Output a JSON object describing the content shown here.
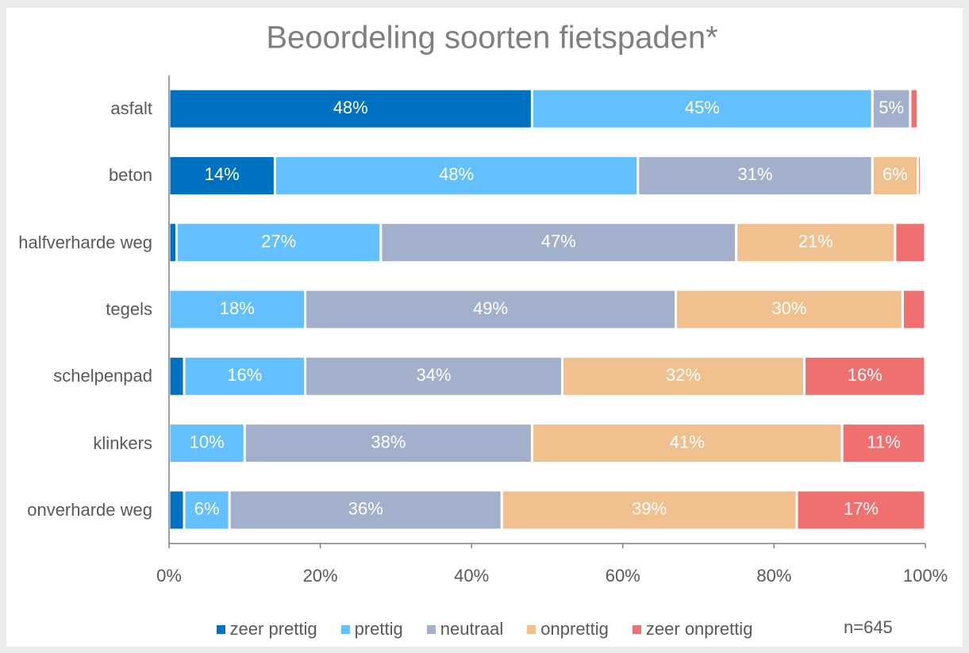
{
  "chart_data": {
    "type": "stacked_barh",
    "title": "Beoordeling soorten fietspaden*",
    "annotation": "n=645",
    "categories": [
      "asfalt",
      "beton",
      "halfverharde weg",
      "tegels",
      "schelpenpad",
      "klinkers",
      "onverharde weg"
    ],
    "series": [
      {
        "name": "zeer prettig",
        "color": "#0070c0",
        "values": [
          48,
          14,
          1,
          0,
          2,
          0,
          2
        ],
        "value_labels": [
          "48%",
          "14%",
          null,
          null,
          null,
          null,
          null
        ]
      },
      {
        "name": "prettig",
        "color": "#63bffe",
        "values": [
          45,
          48,
          27,
          18,
          16,
          10,
          6
        ],
        "value_labels": [
          "45%",
          "48%",
          "27%",
          "18%",
          "16%",
          "10%",
          "6%"
        ]
      },
      {
        "name": "neutraal",
        "color": "#a2b0cb",
        "values": [
          5,
          31,
          47,
          49,
          34,
          38,
          36
        ],
        "value_labels": [
          "5%",
          "31%",
          "47%",
          "49%",
          "34%",
          "38%",
          "36%"
        ]
      },
      {
        "name": "onprettig",
        "color": "#f0c18f",
        "values": [
          0,
          6,
          21,
          30,
          32,
          41,
          39
        ],
        "value_labels": [
          null,
          "6%",
          "21%",
          "30%",
          "32%",
          "41%",
          "39%"
        ]
      },
      {
        "name": "zeer onprettig",
        "color": "#f07070",
        "values": [
          1,
          0.4,
          4,
          3,
          16,
          11,
          17
        ],
        "value_labels": [
          null,
          null,
          null,
          null,
          "16%",
          "11%",
          "17%"
        ]
      }
    ],
    "xlim": [
      0,
      100
    ],
    "xticks": [
      {
        "value": 0,
        "label": "0%"
      },
      {
        "value": 20,
        "label": "20%"
      },
      {
        "value": 40,
        "label": "40%"
      },
      {
        "value": 60,
        "label": "60%"
      },
      {
        "value": 80,
        "label": "80%"
      },
      {
        "value": 100,
        "label": "100%"
      }
    ],
    "legend": "bottom"
  }
}
